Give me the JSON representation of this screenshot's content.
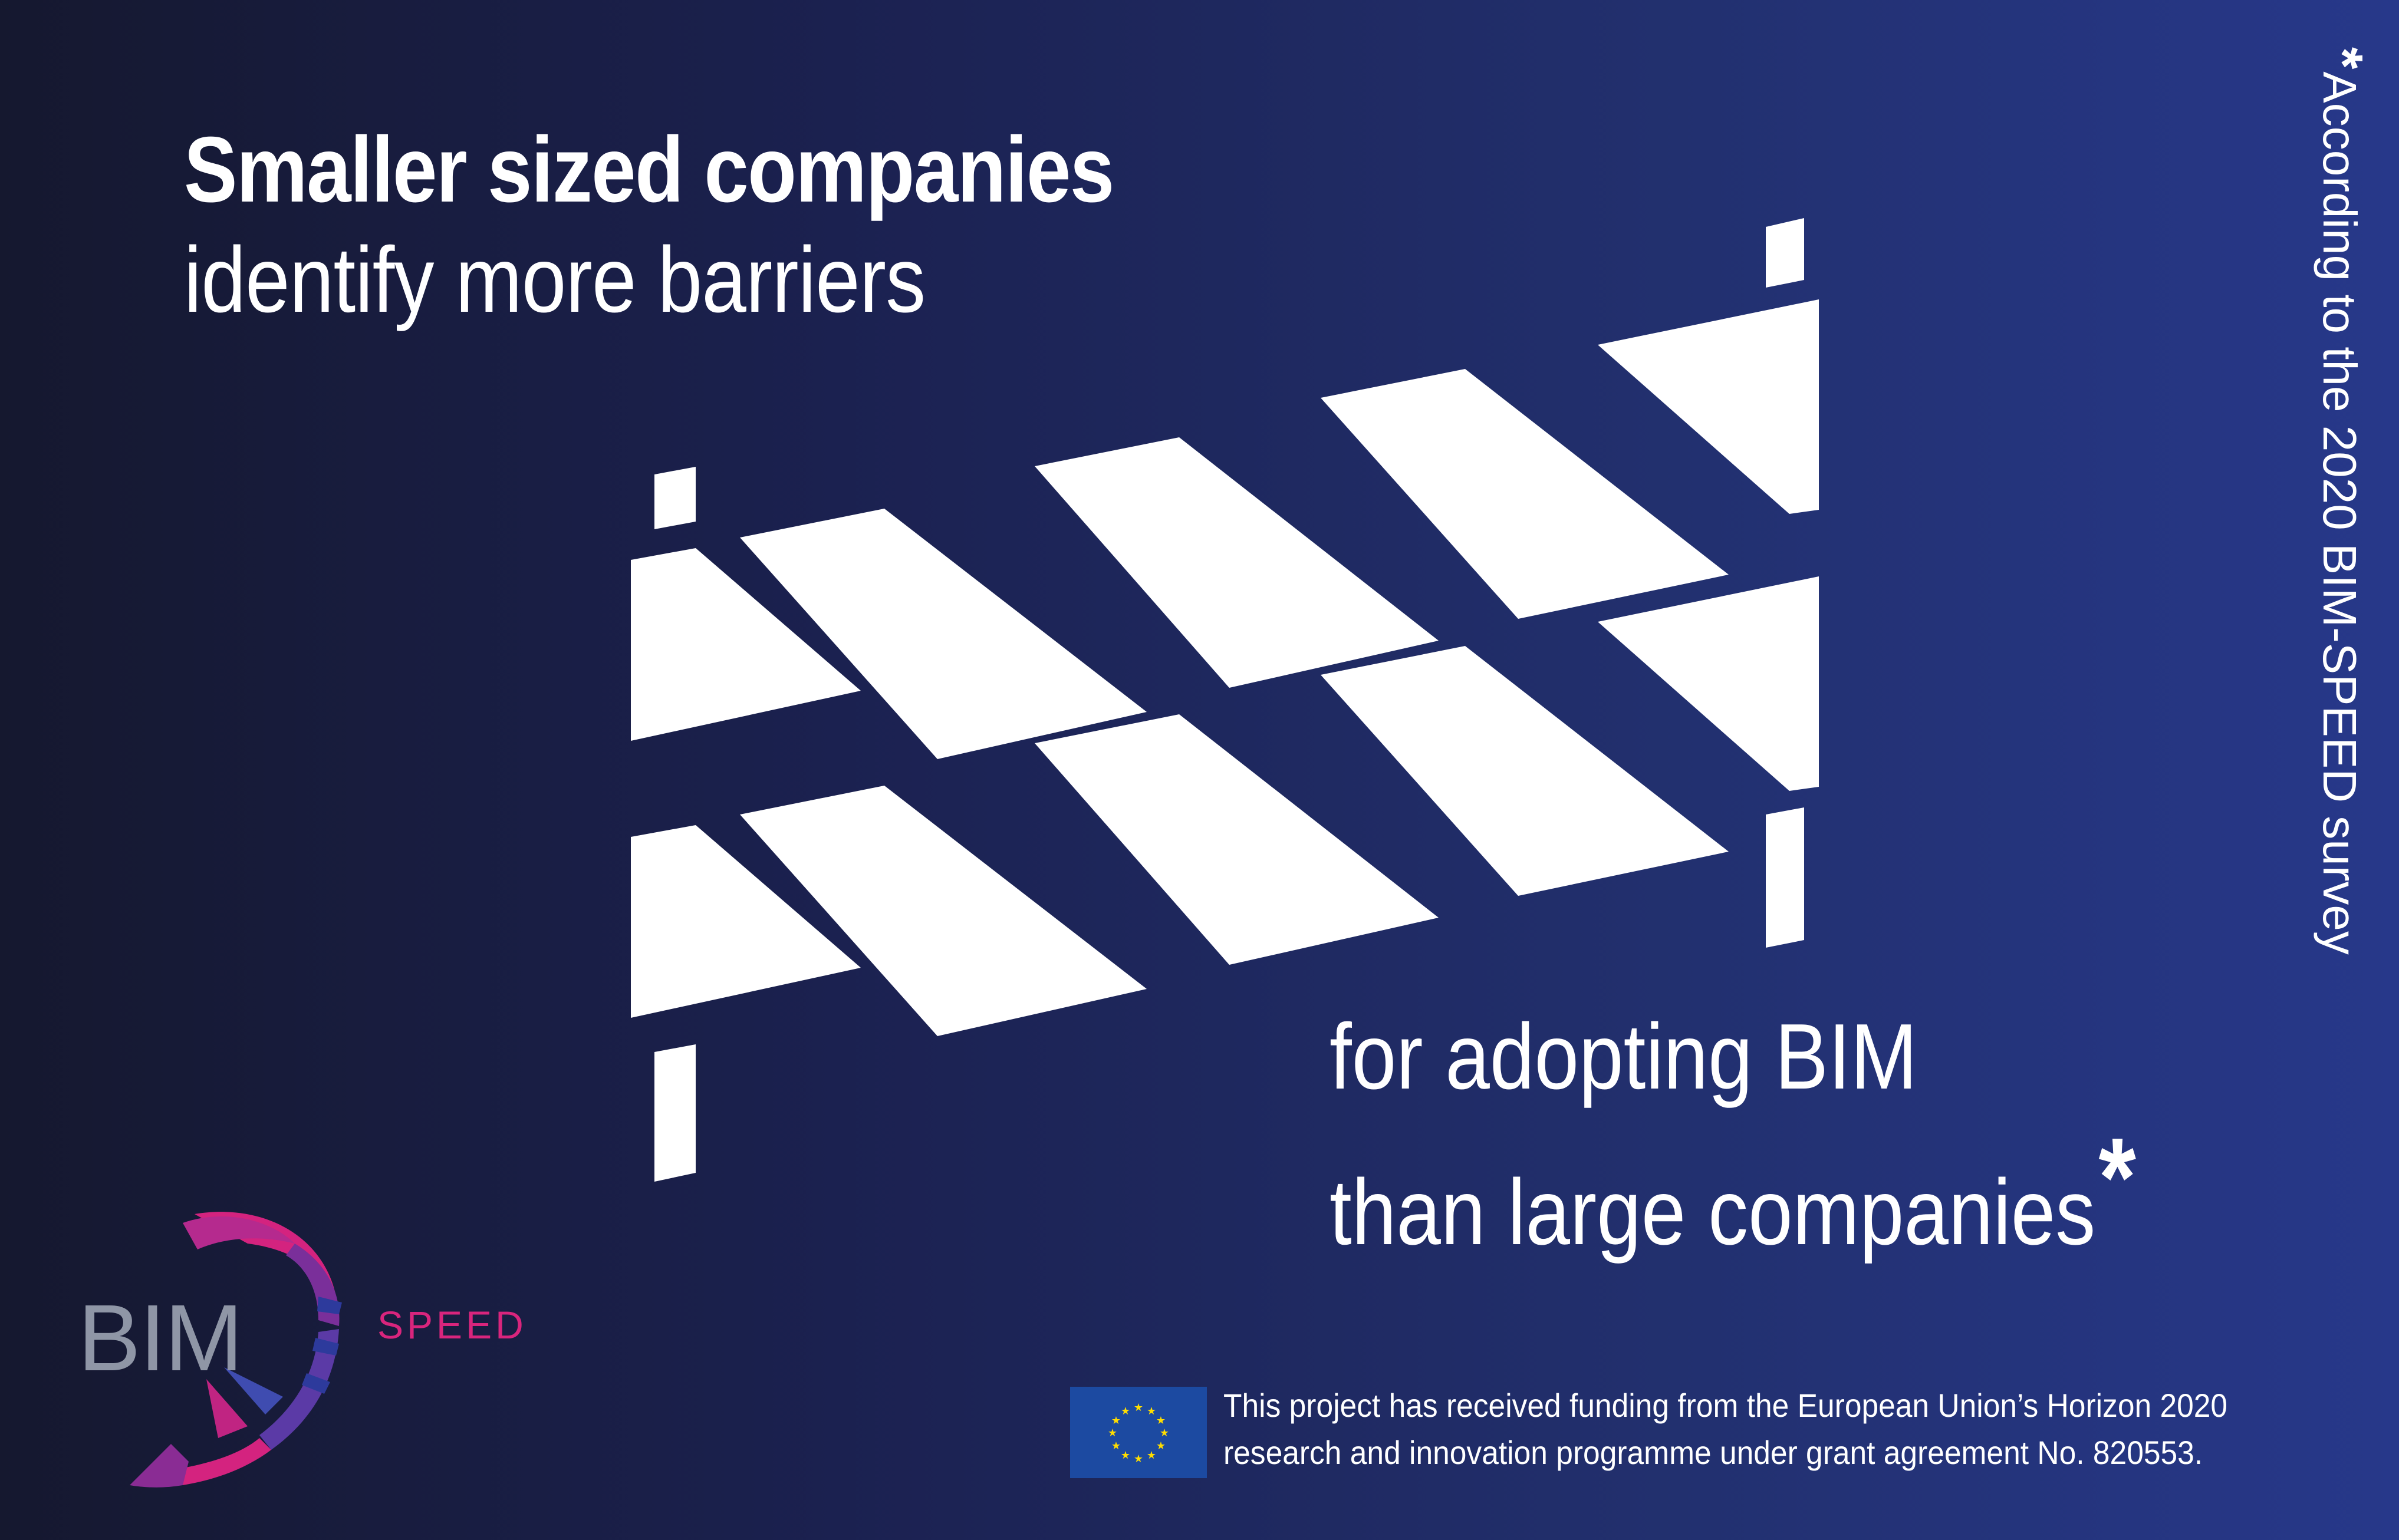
{
  "headline": {
    "bold": "Smaller sized companies",
    "light": "identify more barriers"
  },
  "tagline": {
    "line1": "for adopting BIM",
    "line2": "than large companies",
    "asterisk": "*"
  },
  "side_note": {
    "star": "*",
    "text": "According to the 2020 BIM-SPEED survey"
  },
  "logo": {
    "bim": "BIM",
    "speed": "SPEED",
    "colors": {
      "bim": "#8f96a6",
      "speed": "#d9257d",
      "swirl_accent": "#d4237f"
    }
  },
  "funding": {
    "line1": "This project has received funding from the European Union’s Horizon 2020",
    "line2": "research and innovation programme under grant agreement No. 820553."
  },
  "icons": {
    "barrier": "road-barrier-icon",
    "eu_flag": "eu-flag-icon",
    "logo_swirl": "bim-speed-swirl-icon"
  },
  "colors": {
    "background_left": "#15182f",
    "background_right": "#27388a",
    "text": "#ffffff",
    "eu_blue": "#1c4aa1",
    "eu_star": "#ffdd00"
  }
}
